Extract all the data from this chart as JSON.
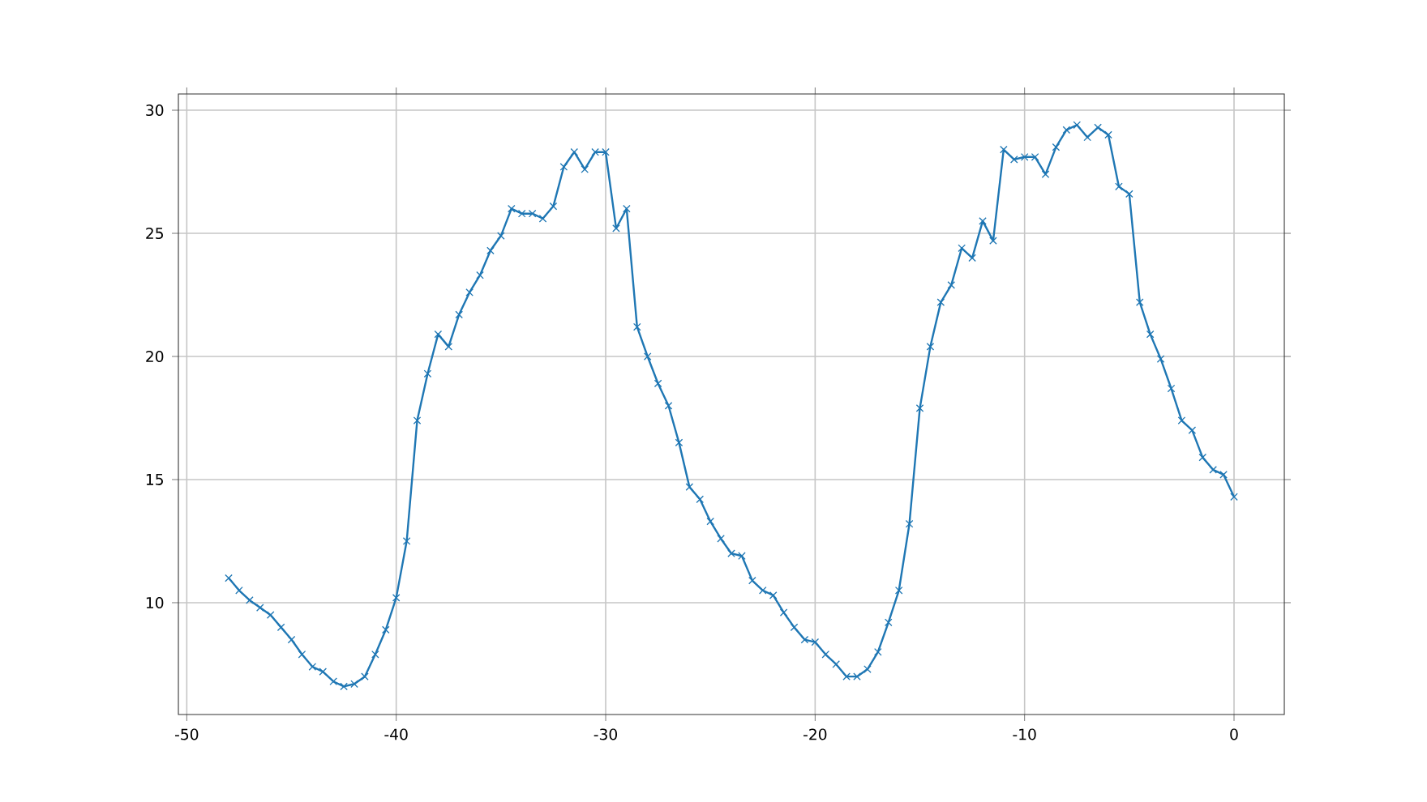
{
  "chart_data": {
    "type": "line",
    "marker": "cross",
    "grid": true,
    "xlim": [
      -50.4,
      2.4
    ],
    "ylim": [
      5.46,
      30.66
    ],
    "xticks": [
      -50,
      -40,
      -30,
      -20,
      -10,
      0
    ],
    "yticks": [
      10,
      15,
      20,
      25,
      30
    ],
    "x": [
      -48,
      -47.5,
      -47,
      -46.5,
      -46,
      -45.5,
      -45,
      -44.5,
      -44,
      -43.5,
      -43,
      -42.5,
      -42,
      -41.5,
      -41,
      -40.5,
      -40,
      -39.5,
      -39,
      -38.5,
      -38,
      -37.5,
      -37,
      -36.5,
      -36,
      -35.5,
      -35,
      -34.5,
      -34,
      -33.5,
      -33,
      -32.5,
      -32,
      -31.5,
      -31,
      -30.5,
      -30,
      -29.5,
      -29,
      -28.5,
      -28,
      -27.5,
      -27,
      -26.5,
      -26,
      -25.5,
      -25,
      -24.5,
      -24,
      -23.5,
      -23,
      -22.5,
      -22,
      -21.5,
      -21,
      -20.5,
      -20,
      -19.5,
      -19,
      -18.5,
      -18,
      -17.5,
      -17,
      -16.5,
      -16,
      -15.5,
      -15,
      -14.5,
      -14,
      -13.5,
      -13,
      -12.5,
      -12,
      -11.5,
      -11,
      -10.5,
      -10,
      -9.5,
      -9,
      -8.5,
      -8,
      -7.5,
      -7,
      -6.5,
      -6,
      -5.5,
      -5,
      -4.5,
      -4,
      -3.5,
      -3,
      -2.5,
      -2,
      -1.5,
      -1,
      -0.5,
      0
    ],
    "series": [
      {
        "color": "#1f77b4",
        "values": [
          11.0,
          10.5,
          10.1,
          9.8,
          9.5,
          9.0,
          8.5,
          7.9,
          7.4,
          7.2,
          6.8,
          6.6,
          6.7,
          7.0,
          7.9,
          8.9,
          10.2,
          12.5,
          17.4,
          19.3,
          20.9,
          20.4,
          21.7,
          22.6,
          23.3,
          24.3,
          24.9,
          26.0,
          25.8,
          25.8,
          25.6,
          26.1,
          27.7,
          28.3,
          27.6,
          28.3,
          28.3,
          25.2,
          26.0,
          21.2,
          20.0,
          18.9,
          18.0,
          16.5,
          14.7,
          14.2,
          13.3,
          12.6,
          12.0,
          11.9,
          10.9,
          10.5,
          10.3,
          9.6,
          9.0,
          8.5,
          8.4,
          7.9,
          7.5,
          7.0,
          7.0,
          7.3,
          8.0,
          9.2,
          10.5,
          13.2,
          17.9,
          20.4,
          22.2,
          22.9,
          24.4,
          24.0,
          25.5,
          24.7,
          28.4,
          28.0,
          28.1,
          28.1,
          27.4,
          28.5,
          29.2,
          29.4,
          28.9,
          29.3,
          29.0,
          26.9,
          26.6,
          22.2,
          20.9,
          19.9,
          18.7,
          17.4,
          17.0,
          15.9,
          15.4,
          15.2,
          14.3
        ]
      }
    ]
  }
}
